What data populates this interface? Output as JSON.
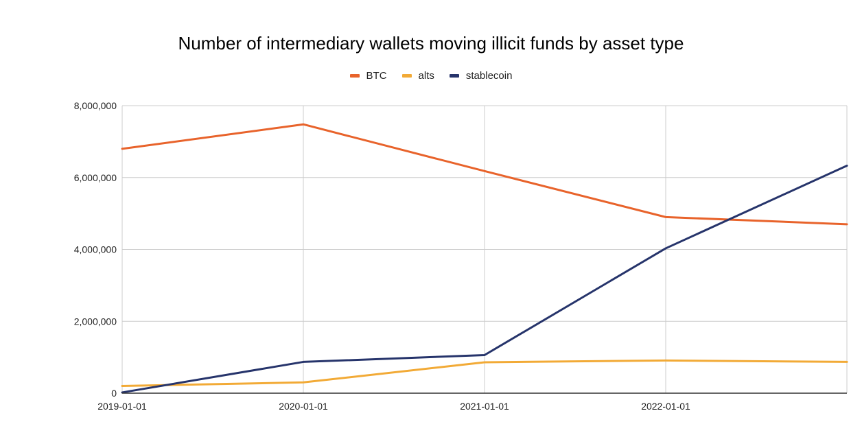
{
  "chart_data": {
    "type": "line",
    "title": "Number of intermediary wallets moving illicit funds by asset type",
    "xlabel": "",
    "ylabel": "",
    "x": [
      "2019-01-01",
      "2020-01-01",
      "2021-01-01",
      "2022-01-01",
      "2023-01-01"
    ],
    "x_tick_labels": [
      "2019-01-01",
      "2020-01-01",
      "2021-01-01",
      "2022-01-01"
    ],
    "y_tick_labels": [
      "0",
      "2,000,000",
      "4,000,000",
      "6,000,000",
      "8,000,000"
    ],
    "y_ticks": [
      0,
      2000000,
      4000000,
      6000000,
      8000000
    ],
    "ylim": [
      0,
      8000000
    ],
    "legend_position": "top-center",
    "grid": true,
    "series": [
      {
        "name": "BTC",
        "color": "#e8632b",
        "values": [
          6800000,
          7480000,
          6180000,
          4900000,
          4700000
        ]
      },
      {
        "name": "alts",
        "color": "#f2aa36",
        "values": [
          200000,
          300000,
          860000,
          910000,
          870000
        ]
      },
      {
        "name": "stablecoin",
        "color": "#26346b",
        "values": [
          20000,
          870000,
          1060000,
          4030000,
          6330000
        ]
      }
    ]
  }
}
